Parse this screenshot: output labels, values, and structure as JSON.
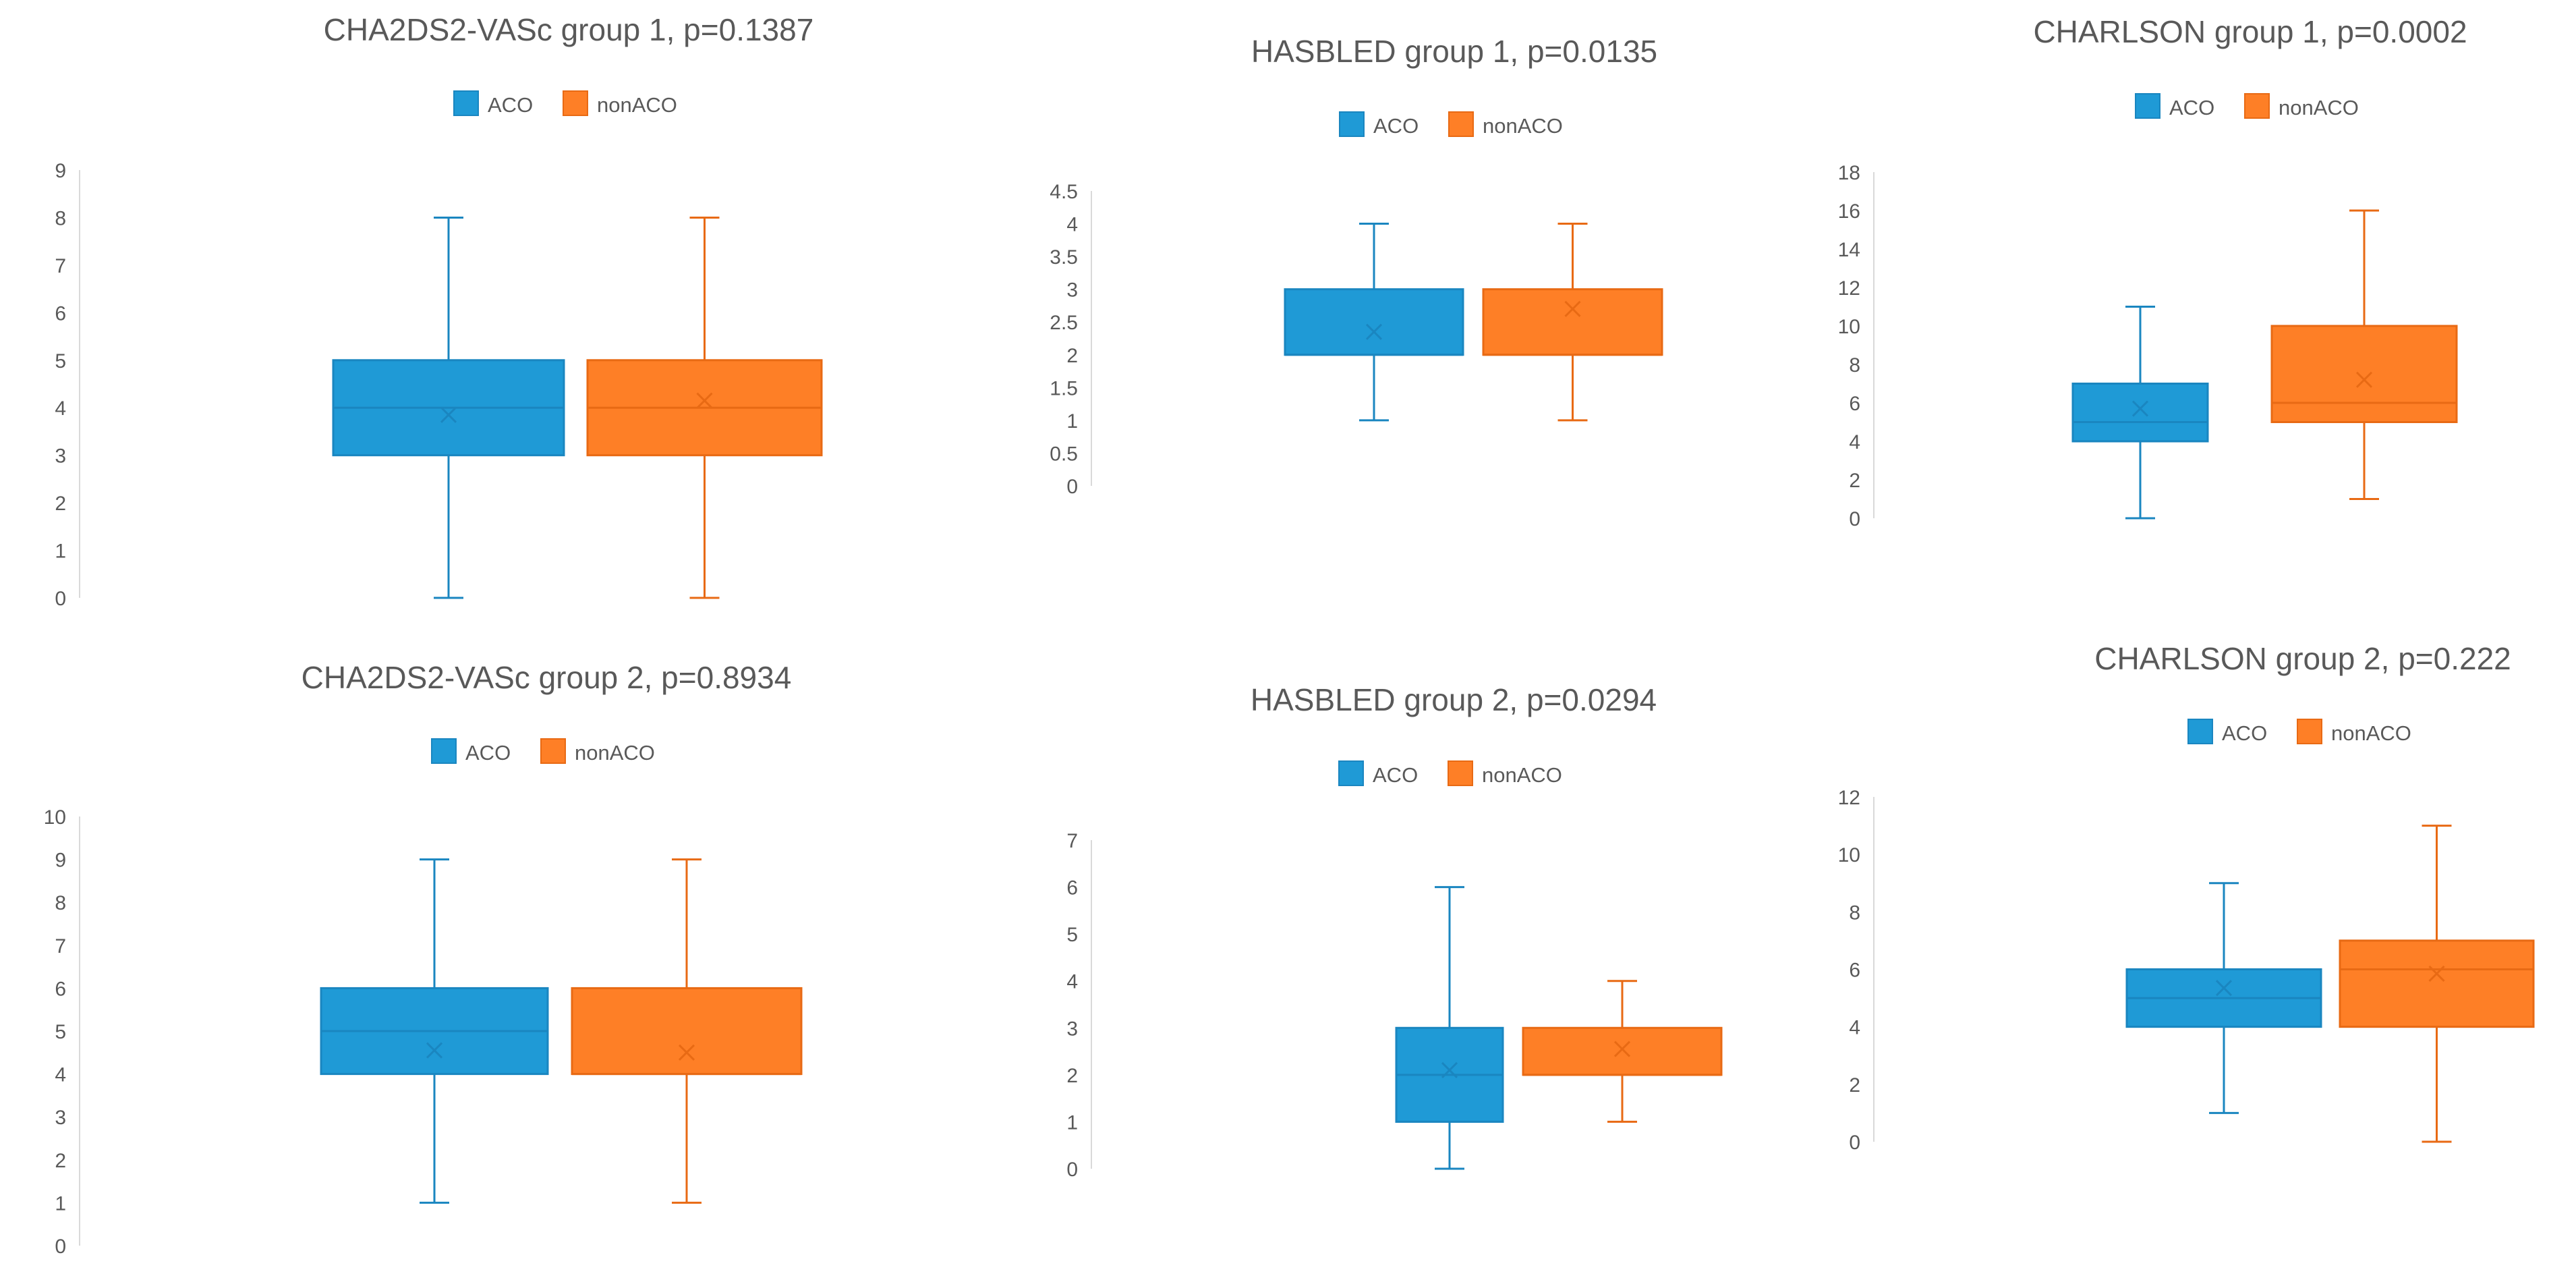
{
  "colors": {
    "aco_fill": "#1f9ad6",
    "aco_line": "#1a86c0",
    "nonaco_fill": "#fe7f26",
    "nonaco_line": "#e86a14",
    "axis": "#d9d9d9",
    "text": "#595959"
  },
  "chart_data": [
    {
      "type": "box",
      "title": "CHA2DS2-VASc group 1, p=0.1387",
      "legend": [
        "ACO",
        "nonACO"
      ],
      "yticks": [
        "0",
        "1",
        "2",
        "3",
        "4",
        "5",
        "6",
        "7",
        "8",
        "9"
      ],
      "ylim": [
        0,
        9
      ],
      "series": [
        {
          "name": "ACO",
          "min": 0,
          "q1": 3,
          "median": 4,
          "q3": 5,
          "max": 8,
          "mean": 3.85
        },
        {
          "name": "nonACO",
          "min": 0,
          "q1": 3,
          "median": 4,
          "q3": 5,
          "max": 8,
          "mean": 4.15
        }
      ]
    },
    {
      "type": "box",
      "title": "HASBLED group 1, p=0.0135",
      "legend": [
        "ACO",
        "nonACO"
      ],
      "yticks": [
        "0",
        "0.5",
        "1",
        "1.5",
        "2",
        "2.5",
        "3",
        "3.5",
        "4",
        "4.5"
      ],
      "ylim": [
        0,
        4.5
      ],
      "series": [
        {
          "name": "ACO",
          "min": 1,
          "q1": 2,
          "median": 2,
          "q3": 3,
          "max": 4,
          "mean": 2.35
        },
        {
          "name": "nonACO",
          "min": 1,
          "q1": 2,
          "median": 2,
          "q3": 3,
          "max": 4,
          "mean": 2.7
        }
      ]
    },
    {
      "type": "box",
      "title": "CHARLSON group 1, p=0.0002",
      "legend": [
        "ACO",
        "nonACO"
      ],
      "yticks": [
        "0",
        "2",
        "4",
        "6",
        "8",
        "10",
        "12",
        "14",
        "16",
        "18"
      ],
      "ylim": [
        0,
        18
      ],
      "series": [
        {
          "name": "ACO",
          "min": 0,
          "q1": 4,
          "median": 5,
          "q3": 7,
          "max": 11,
          "mean": 5.7
        },
        {
          "name": "nonACO",
          "min": 1,
          "q1": 5,
          "median": 6,
          "q3": 10,
          "max": 16,
          "mean": 7.2
        }
      ]
    },
    {
      "type": "box",
      "title": "CHA2DS2-VASc group 2, p=0.8934",
      "legend": [
        "ACO",
        "nonACO"
      ],
      "yticks": [
        "0",
        "1",
        "2",
        "3",
        "4",
        "5",
        "6",
        "7",
        "8",
        "9",
        "10"
      ],
      "ylim": [
        0,
        10
      ],
      "series": [
        {
          "name": "ACO",
          "min": 1,
          "q1": 4,
          "median": 5,
          "q3": 6,
          "max": 9,
          "mean": 4.55
        },
        {
          "name": "nonACO",
          "min": 1,
          "q1": 4,
          "median": 4,
          "q3": 6,
          "max": 9,
          "mean": 4.5
        }
      ]
    },
    {
      "type": "box",
      "title": "HASBLED group 2, p=0.0294",
      "legend": [
        "ACO",
        "nonACO"
      ],
      "yticks": [
        "0",
        "1",
        "2",
        "3",
        "4",
        "5",
        "6",
        "7"
      ],
      "ylim": [
        0,
        7
      ],
      "series": [
        {
          "name": "ACO",
          "min": 0,
          "q1": 1,
          "median": 2,
          "q3": 3,
          "max": 6,
          "mean": 2.1
        },
        {
          "name": "nonACO",
          "min": 1,
          "q1": 2,
          "median": 2,
          "q3": 3,
          "max": 4,
          "mean": 2.55
        }
      ]
    },
    {
      "type": "box",
      "title": "CHARLSON group 2, p=0.222",
      "legend": [
        "ACO",
        "nonACO"
      ],
      "yticks": [
        "0",
        "2",
        "4",
        "6",
        "8",
        "10",
        "12"
      ],
      "ylim": [
        0,
        12
      ],
      "series": [
        {
          "name": "ACO",
          "min": 1,
          "q1": 4,
          "median": 5,
          "q3": 6,
          "max": 9,
          "mean": 5.35
        },
        {
          "name": "nonACO",
          "min": 0,
          "q1": 4,
          "median": 6,
          "q3": 7,
          "max": 11,
          "mean": 5.85
        }
      ]
    }
  ]
}
